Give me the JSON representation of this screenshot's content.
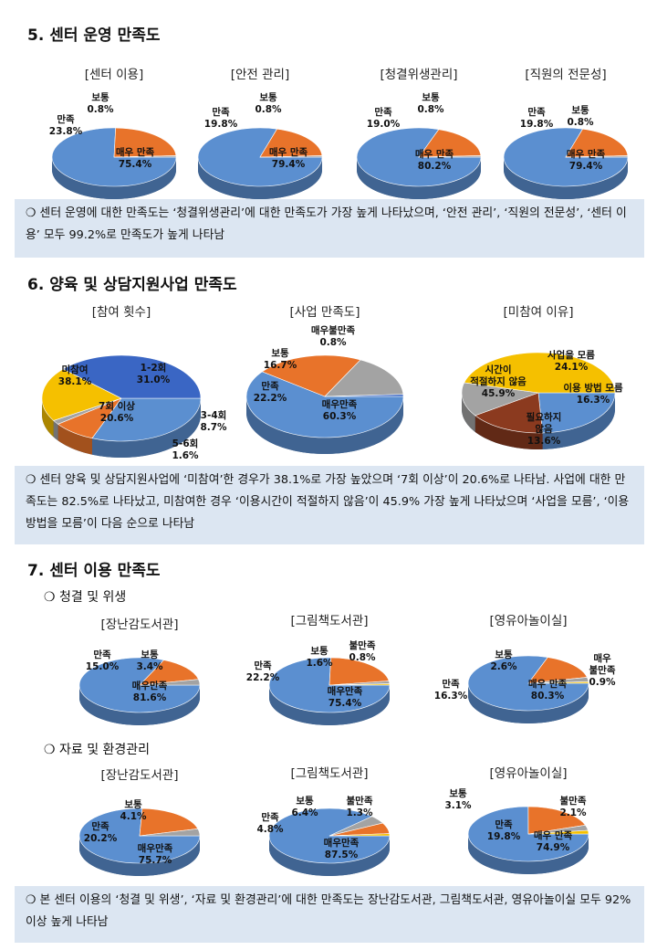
{
  "sections": {
    "s5": {
      "title": "5. 센터 운영 만족도",
      "note": "❍ 센터 운영에 대한 만족도는 ‘청결위생관리’에 대한 만족도가 가장 높게 나타났으며, ‘안전 관리’, ‘직원의 전문성’, ‘센터 이용’ 모두 99.2%로 만족도가 높게 나타남"
    },
    "s6": {
      "title": "6. 양육 및 상담지원사업 만족도",
      "note": "❍ 센터 양육 및 상담지원사업에 ‘미참여’한 경우가 38.1%로 가장 높았으며 ‘7회 이상’이 20.6%로 나타남. 사업에 대한 만족도는 82.5%로 나타났고, 미참여한 경우 ‘이용시간이 적절하지 않음’이 45.9% 가장 높게 나타났으며 ‘사업을 모름’, ‘이용 방법을 모름’이 다음 순으로 나타남"
    },
    "s7": {
      "title": "7. 센터 이용 만족도",
      "sub1": "❍ 청결 및 위생",
      "sub2": "❍ 자료 및 환경관리",
      "note": "❍ 본 센터 이용의 ‘청결 및 위생’, ‘자료 및 환경관리’에 대한 만족도는 장난감도서관, 그림책도서관, 영유아놀이실 모두 92%이상 높게 나타남"
    }
  },
  "colors": {
    "blue": "#5b8fd0",
    "orange": "#e8732a",
    "gray": "#a3a3a3",
    "yellow": "#f5c000",
    "darkblue": "#3a66c4",
    "brown": "#8b3a1f",
    "note_bg": "#dce6f2"
  },
  "chart_data": [
    {
      "id": "c1",
      "type": "pie",
      "title": "[센터 이용]",
      "categories": [
        "매우 만족",
        "만족",
        "보통"
      ],
      "values": [
        75.4,
        23.8,
        0.8
      ],
      "labels": [
        "75.4%",
        "23.8%",
        "0.8%"
      ]
    },
    {
      "id": "c2",
      "type": "pie",
      "title": "[안전 관리]",
      "categories": [
        "매우 만족",
        "만족",
        "보통"
      ],
      "values": [
        79.4,
        19.8,
        0.8
      ],
      "labels": [
        "79.4%",
        "19.8%",
        "0.8%"
      ]
    },
    {
      "id": "c3",
      "type": "pie",
      "title": "[청결위생관리]",
      "categories": [
        "매우 만족",
        "만족",
        "보통"
      ],
      "values": [
        80.2,
        19.0,
        0.8
      ],
      "labels": [
        "80.2%",
        "19.0%",
        "0.8%"
      ]
    },
    {
      "id": "c4",
      "type": "pie",
      "title": "[직원의 전문성]",
      "categories": [
        "매우 만족",
        "만족",
        "보통"
      ],
      "values": [
        79.4,
        19.8,
        0.8
      ],
      "labels": [
        "79.4%",
        "19.8%",
        "0.8%"
      ]
    },
    {
      "id": "c5",
      "type": "pie",
      "title": "[참여 횟수]",
      "categories": [
        "1-2회",
        "3-4회",
        "5-6회",
        "7회 이상",
        "미참여"
      ],
      "values": [
        31.0,
        8.7,
        1.6,
        20.6,
        38.1
      ],
      "labels": [
        "31.0%",
        "8.7%",
        "1.6%",
        "20.6%",
        "38.1%"
      ]
    },
    {
      "id": "c6",
      "type": "pie",
      "title": "[사업 만족도]",
      "categories": [
        "매우만족",
        "만족",
        "보통",
        "매우불만족"
      ],
      "values": [
        60.3,
        22.2,
        16.7,
        0.8
      ],
      "labels": [
        "60.3%",
        "22.2%",
        "16.7%",
        "0.8%"
      ]
    },
    {
      "id": "c7",
      "type": "pie",
      "title": "[미참여 이유]",
      "categories": [
        "사업을 모름",
        "이용 방법 모름",
        "필요하지 않음",
        "시간이 적절하지 않음"
      ],
      "values": [
        24.1,
        16.3,
        13.6,
        45.9
      ],
      "labels": [
        "24.1%",
        "16.3%",
        "13.6%",
        "45.9%"
      ]
    },
    {
      "id": "c8",
      "type": "pie",
      "title": "[장난감도서관]",
      "categories": [
        "매우만족",
        "만족",
        "보통"
      ],
      "values": [
        81.6,
        15.0,
        3.4
      ],
      "labels": [
        "81.6%",
        "15.0%",
        "3.4%"
      ]
    },
    {
      "id": "c9",
      "type": "pie",
      "title": "[그림책도서관]",
      "categories": [
        "매우만족",
        "만족",
        "보통",
        "불만족"
      ],
      "values": [
        75.4,
        22.2,
        1.6,
        0.8
      ],
      "labels": [
        "75.4%",
        "22.2%",
        "1.6%",
        "0.8%"
      ]
    },
    {
      "id": "c10",
      "type": "pie",
      "title": "[영유아놀이실]",
      "categories": [
        "매우 만족",
        "만족",
        "보통",
        "매우 불만족"
      ],
      "values": [
        80.3,
        16.3,
        2.6,
        0.9
      ],
      "labels": [
        "80.3%",
        "16.3%",
        "2.6%",
        "0.9%"
      ]
    },
    {
      "id": "c11",
      "type": "pie",
      "title": "[장난감도서관]",
      "categories": [
        "매우만족",
        "만족",
        "보통"
      ],
      "values": [
        75.7,
        20.2,
        4.1
      ],
      "labels": [
        "75.7%",
        "20.2%",
        "4.1%"
      ]
    },
    {
      "id": "c12",
      "type": "pie",
      "title": "[그림책도서관]",
      "categories": [
        "매우만족",
        "만족",
        "보통",
        "불만족"
      ],
      "values": [
        87.5,
        4.8,
        6.4,
        1.3
      ],
      "labels": [
        "87.5%",
        "4.8%",
        "6.4%",
        "1.3%"
      ]
    },
    {
      "id": "c13",
      "type": "pie",
      "title": "[영유아놀이실]",
      "categories": [
        "매우 만족",
        "만족",
        "보통",
        "불만족"
      ],
      "values": [
        74.9,
        19.8,
        3.1,
        2.1
      ],
      "labels": [
        "74.9%",
        "19.8%",
        "3.1%",
        "2.1%"
      ]
    }
  ]
}
